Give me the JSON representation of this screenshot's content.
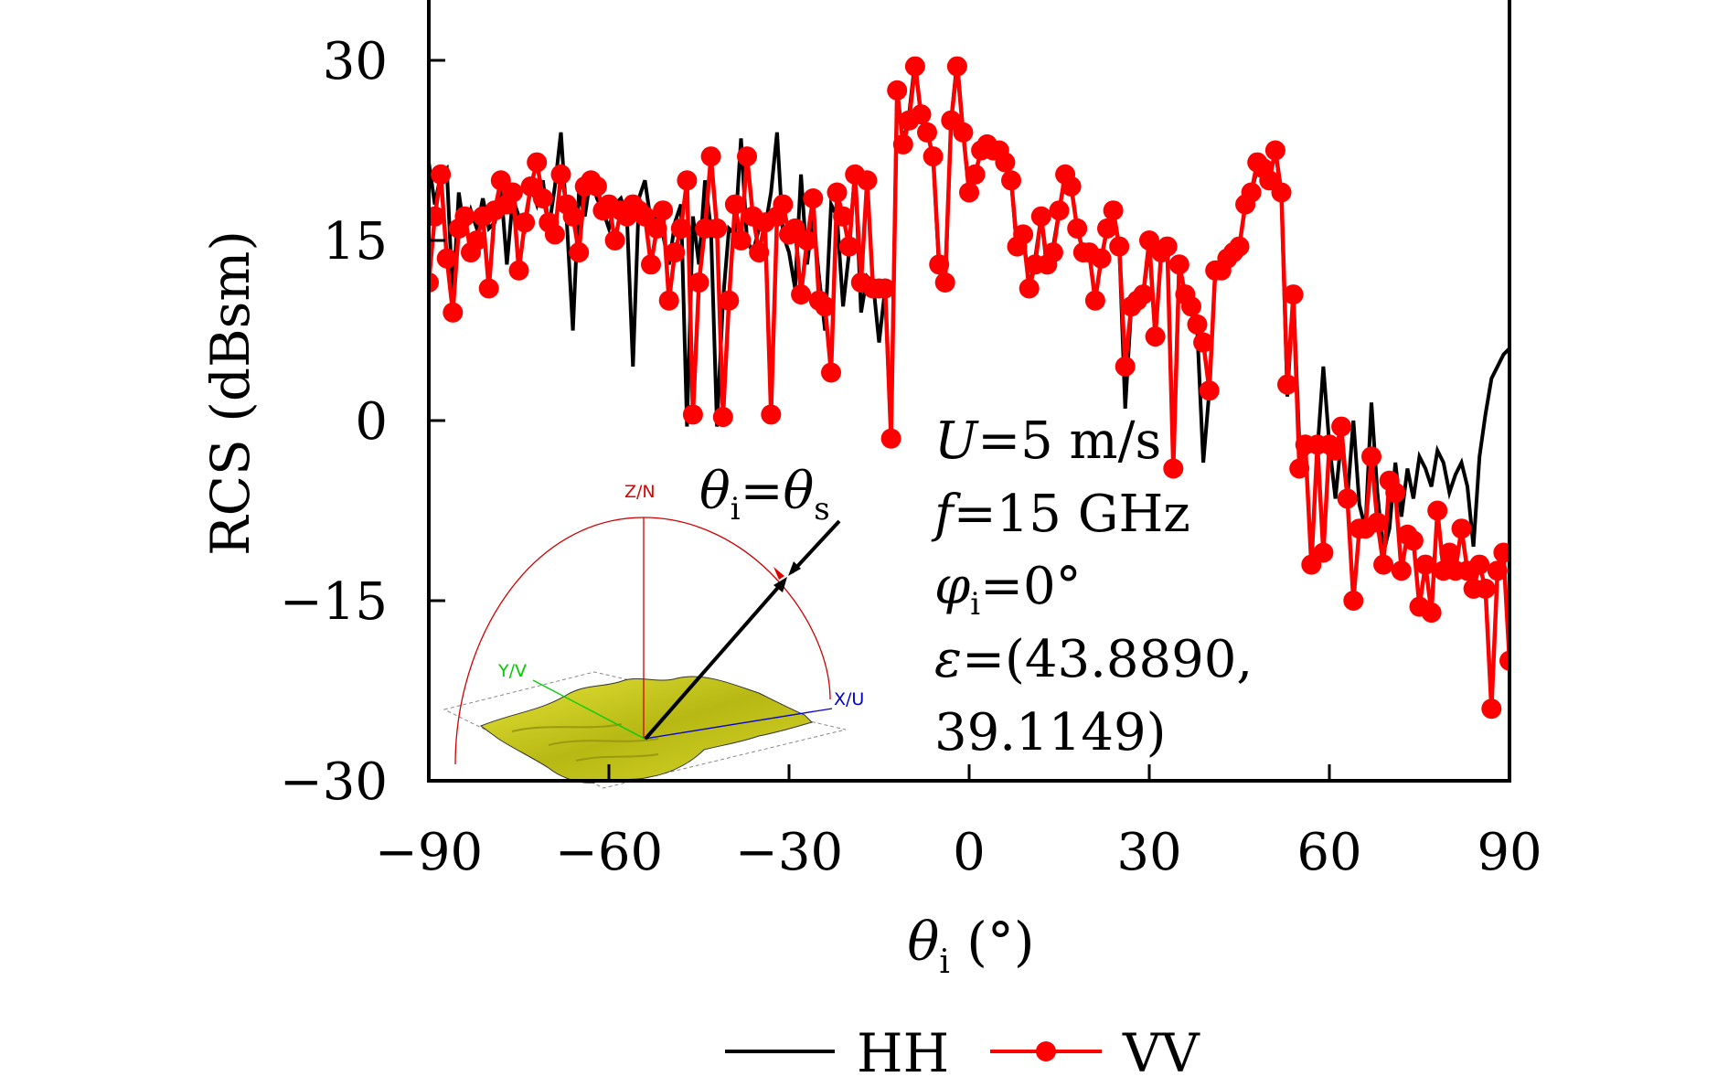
{
  "chart_data": {
    "type": "line",
    "title": "",
    "xlabel": "θi (°)",
    "xlabel_main": "θ",
    "xlabel_sub": "i",
    "xlabel_unit": " (°)",
    "ylabel": "RCS (dBsm)",
    "xlim": [
      -90,
      90
    ],
    "ylim": [
      -30,
      35
    ],
    "xticks": [
      -90,
      -60,
      -30,
      0,
      30,
      60,
      90
    ],
    "xtick_labels": [
      "−90",
      "−60",
      "−30",
      "0",
      "30",
      "60",
      "90"
    ],
    "yticks": [
      -30,
      -15,
      0,
      15,
      30
    ],
    "ytick_labels": [
      "−30",
      "−15",
      "0",
      "15",
      "30"
    ],
    "grid": false,
    "legend_position": "bottom-center",
    "x_start": -90,
    "x_step": 1,
    "series": [
      {
        "name": "HH",
        "color": "#000000",
        "marker": "none",
        "values": [
          21.5,
          18,
          20.5,
          21,
          10,
          19,
          15.5,
          17.5,
          16,
          18.5,
          16,
          16.5,
          19.5,
          13,
          18.5,
          17,
          16,
          19.5,
          18,
          20,
          16,
          19.5,
          24,
          16.5,
          7.5,
          19,
          17,
          20.5,
          18.5,
          17.5,
          16,
          18,
          18.5,
          17,
          4.5,
          18.5,
          20,
          16.5,
          17,
          15.5,
          13,
          16.5,
          18,
          -0.5,
          17,
          13,
          20,
          16,
          -0.5,
          10,
          16,
          15.5,
          23.5,
          15,
          14,
          16,
          16,
          19,
          24,
          15.5,
          14,
          11,
          20.5,
          13,
          17,
          12,
          7.5,
          18,
          17,
          9.5,
          14,
          21,
          9,
          12,
          11.5,
          6.5,
          11,
          -1.5,
          27.5,
          23,
          25.5,
          30,
          25,
          24,
          22,
          12.5,
          11,
          25,
          30,
          24,
          19,
          20.5,
          22.5,
          23,
          22.5,
          22.5,
          21.5,
          20,
          14,
          15.5,
          11,
          13.5,
          17,
          12.5,
          14.5,
          17.5,
          20.5,
          19.5,
          16,
          14,
          14,
          10,
          13.5,
          16,
          17.5,
          14.5,
          1,
          9.5,
          10,
          10.5,
          14.5,
          7,
          14,
          14.5,
          -3.5,
          13,
          10.5,
          9,
          7.5,
          -3.5,
          2.5,
          12.5,
          12,
          13.5,
          14.5,
          14.5,
          18,
          19,
          21,
          20.5,
          20,
          22.5,
          19,
          2,
          10.5,
          -2,
          -3,
          -2,
          -2.5,
          4.5,
          -2,
          -6.5,
          -1.5,
          -6.5,
          0,
          -7,
          -9,
          1.5,
          -6,
          -11,
          -9,
          -3.5,
          -8,
          -4,
          -6.5,
          -3,
          -4,
          -5.5,
          -2.5,
          -3.5,
          -6,
          -4.5,
          -3.5,
          -5.5,
          -10.5,
          -3,
          0.5,
          3.5,
          4.5,
          5.5,
          6
        ]
      },
      {
        "name": "VV",
        "color": "#ff0000",
        "marker": "circle",
        "values": [
          11.5,
          17,
          20.5,
          13.5,
          9,
          16,
          17,
          14,
          15,
          17,
          11,
          17.5,
          20,
          18,
          19,
          12.5,
          16.5,
          19.5,
          21.5,
          18.5,
          16.5,
          15.5,
          20.5,
          18,
          17,
          14,
          19.5,
          20,
          19.5,
          17.5,
          18,
          15,
          17.5,
          17,
          18,
          17.5,
          17,
          13,
          16,
          17.5,
          10,
          14,
          16,
          20,
          0.5,
          11.5,
          16,
          22,
          16,
          0.3,
          10,
          18,
          15,
          22,
          17,
          14,
          16.5,
          0.5,
          17,
          18,
          15.5,
          16,
          10.5,
          15,
          18.5,
          10,
          9.5,
          4,
          19,
          17,
          14.5,
          20.5,
          11.5,
          20,
          11,
          11,
          11,
          -1.5,
          27.5,
          23,
          25,
          29.5,
          25.5,
          24,
          22,
          13,
          11.5,
          25,
          29.5,
          24,
          19,
          20.5,
          22.5,
          23,
          22.5,
          22.5,
          21.5,
          20,
          14.5,
          15.5,
          11,
          13,
          17,
          13,
          14,
          17.5,
          20.5,
          19.5,
          16,
          14,
          14,
          10,
          13.5,
          16,
          17.5,
          14.5,
          4.5,
          9.5,
          10,
          10.5,
          15,
          7,
          14,
          14.5,
          -4,
          13,
          10.5,
          9.5,
          8,
          6.5,
          2.5,
          12.5,
          12.5,
          13.5,
          14,
          14.5,
          18,
          19,
          21.5,
          21,
          20,
          22.5,
          19,
          3,
          10.5,
          -4,
          -2,
          -12,
          -2,
          -11,
          -2,
          -2.5,
          -0.5,
          -6.5,
          -15,
          -9,
          -9,
          -3,
          -8.5,
          -12,
          -5,
          -6,
          -12.5,
          -9.5,
          -10,
          -15.5,
          -12,
          -16,
          -7.5,
          -12.5,
          -11,
          -12.5,
          -9,
          -12.5,
          -14,
          -12,
          -14,
          -24,
          -12.5,
          -11,
          -20
        ]
      }
    ]
  },
  "annotations": {
    "line1": "U=5 m/s",
    "line1_var": "U",
    "line1_rest": "=5 m/s",
    "line2_var": "f",
    "line2_rest": "=15 GHz",
    "line3_var": "φ",
    "line3_sub": "i",
    "line3_rest": "=0°",
    "line4_var": "ε",
    "line4_rest": "=(43.8890,",
    "line5": "39.1149)"
  },
  "inset": {
    "equation_var1": "θ",
    "equation_sub1": "i",
    "equation_eq": "=",
    "equation_var2": "θ",
    "equation_sub2": "s",
    "z_axis_label": "Z/N",
    "y_axis_label": "Y/V",
    "x_axis_label": "X/U",
    "colors": {
      "z_axis": "#e00000",
      "y_axis": "#00cc00",
      "x_axis": "#0000cc",
      "surface": "#c8c818"
    }
  },
  "legend": {
    "items": [
      {
        "label": "HH",
        "color": "#000000",
        "marker": "none"
      },
      {
        "label": "VV",
        "color": "#ff0000",
        "marker": "circle"
      }
    ]
  }
}
